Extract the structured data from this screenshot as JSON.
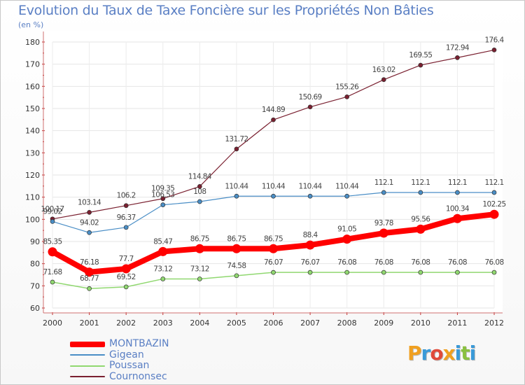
{
  "title": "Evolution du Taux de Taxe Foncière sur les Propriétés Non Bâties",
  "unit_label": "(en %)",
  "logo_text": "Proxiti",
  "chart_data": {
    "type": "line",
    "title": "Evolution du Taux de Taxe Foncière sur les Propriétés Non Bâties",
    "ylabel": "(en %)",
    "xlabel": "",
    "x": [
      "2000",
      "2001",
      "2002",
      "2003",
      "2004",
      "2005",
      "2006",
      "2007",
      "2008",
      "2009",
      "2010",
      "2011",
      "2012"
    ],
    "ylim": [
      60,
      180
    ],
    "yticks": [
      60,
      70,
      80,
      90,
      100,
      110,
      120,
      130,
      140,
      150,
      160,
      170,
      180
    ],
    "grid": true,
    "legend_position": "bottom-left",
    "series": [
      {
        "name": "MONTBAZIN",
        "color": "#ff0000",
        "line_width": 8,
        "values": [
          85.35,
          76.18,
          77.7,
          85.47,
          86.75,
          86.75,
          86.75,
          88.4,
          91.05,
          93.78,
          95.56,
          100.34,
          102.25
        ],
        "labels": [
          "85.35",
          "76.18",
          "77.7",
          "85.47",
          "86.75",
          "86.75",
          "86.75",
          "88.4",
          "91.05",
          "93.78",
          "95.56",
          "100.34",
          "102.25"
        ]
      },
      {
        "name": "Gigean",
        "color": "#4a8ec6",
        "line_width": 1.2,
        "values": [
          99.02,
          94.02,
          96.37,
          106.53,
          108,
          110.44,
          110.44,
          110.44,
          110.44,
          112.1,
          112.1,
          112.1,
          112.1
        ],
        "labels": [
          "99.02",
          "94.02",
          "96.37",
          "106.53",
          "108",
          "110.44",
          "110.44",
          "110.44",
          "110.44",
          "112.1",
          "112.1",
          "112.1",
          "112.1"
        ]
      },
      {
        "name": "Poussan",
        "color": "#90d870",
        "line_width": 1.5,
        "values": [
          71.68,
          68.77,
          69.52,
          73.12,
          73.12,
          74.58,
          76.07,
          76.07,
          76.08,
          76.08,
          76.08,
          76.08,
          76.08
        ],
        "labels": [
          "71.68",
          "68.77",
          "69.52",
          "73.12",
          "73.12",
          "74.58",
          "76.07",
          "76.07",
          "76.08",
          "76.08",
          "76.08",
          "76.08",
          "76.08"
        ]
      },
      {
        "name": "Cournonsec",
        "color": "#7a2030",
        "line_width": 1.2,
        "values": [
          100.17,
          103.14,
          106.2,
          109.35,
          114.84,
          131.72,
          144.89,
          150.69,
          155.26,
          163.02,
          169.55,
          172.94,
          176.4
        ],
        "labels": [
          "100.17",
          "103.14",
          "106.2",
          "109.35",
          "114.84",
          "131.72",
          "144.89",
          "150.69",
          "155.26",
          "163.02",
          "169.55",
          "172.94",
          "176.4"
        ]
      }
    ]
  }
}
